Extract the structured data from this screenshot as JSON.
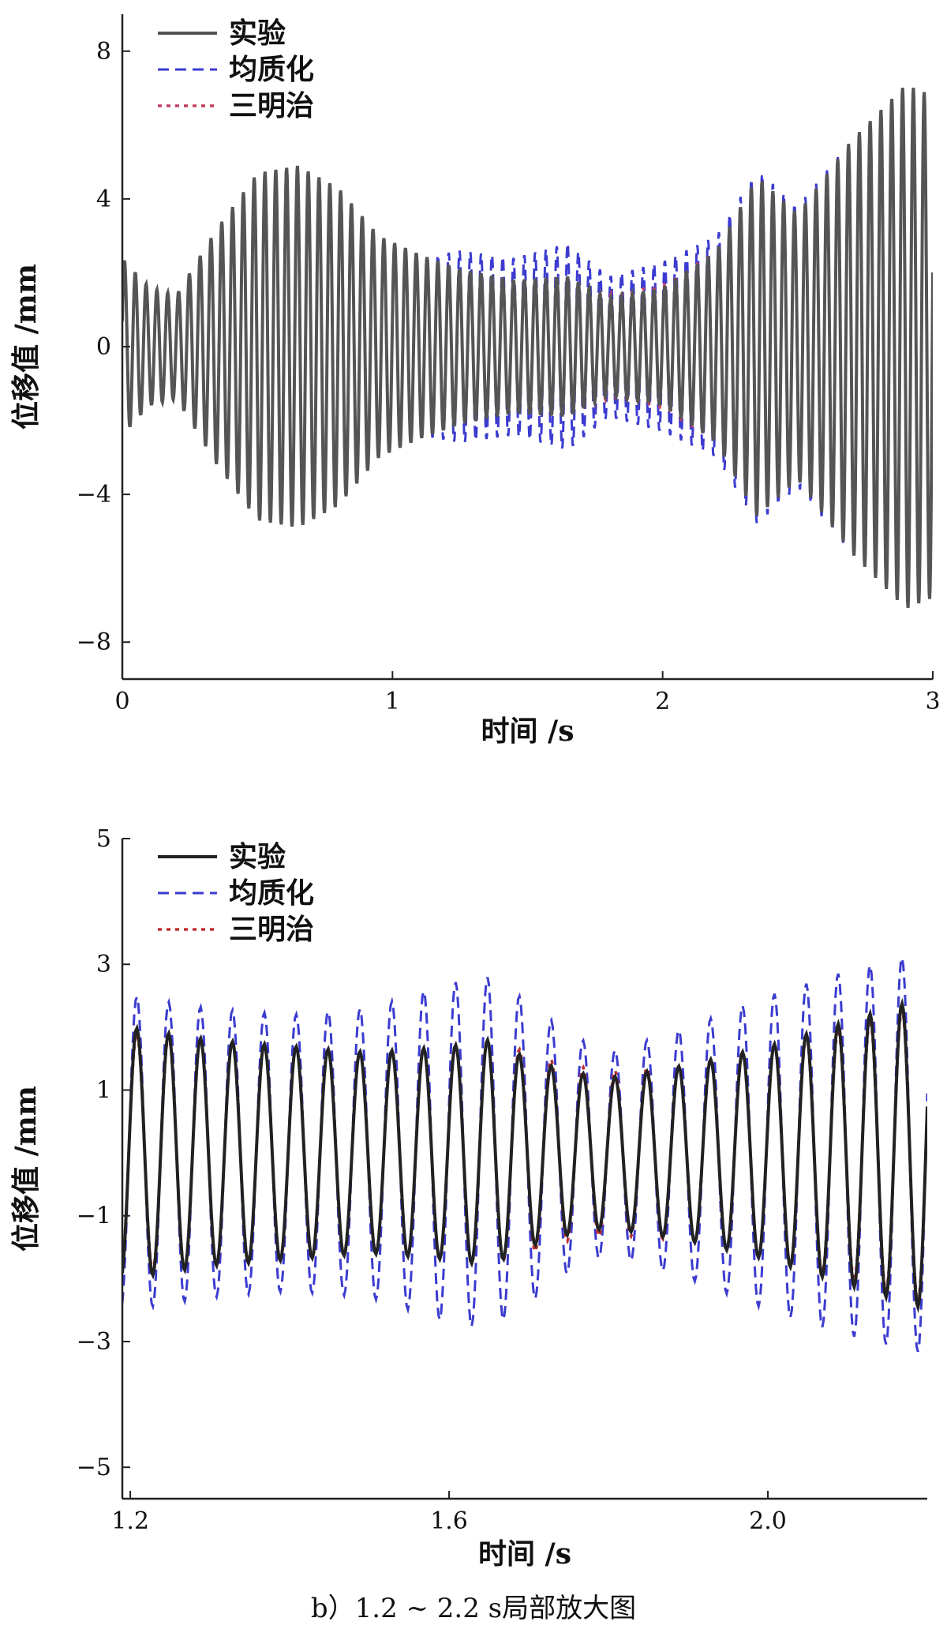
{
  "chart_data": [
    {
      "type": "line",
      "title": "",
      "xlabel": "时间 /s",
      "ylabel": "位移值 /mm",
      "xlim": [
        0,
        3
      ],
      "ylim": [
        -9,
        9
      ],
      "xticks": [
        0,
        1,
        2,
        3
      ],
      "xtick_labels": [
        "0",
        "1",
        "2",
        "3"
      ],
      "yticks": [
        8,
        4,
        0,
        -4,
        -8
      ],
      "ytick_labels": [
        "8",
        "4",
        "0",
        "−4",
        "−8"
      ],
      "grid": false,
      "legend_position": "top-left",
      "oscillation_frequency_hz": 25,
      "series": [
        {
          "name": "实验",
          "style": "solid",
          "color": "#555555",
          "envelope": {
            "t": [
              0,
              0.1,
              0.2,
              0.35,
              0.5,
              0.65,
              0.8,
              0.95,
              1.1,
              1.25,
              1.45,
              1.65,
              1.8,
              2.0,
              2.2,
              2.35,
              2.5,
              2.7,
              2.9,
              3.0
            ],
            "amplitude": [
              2.4,
              1.6,
              1.4,
              3.2,
              4.7,
              4.9,
              4.3,
              3.0,
              2.5,
              2.1,
              1.8,
              1.9,
              1.3,
              1.6,
              2.6,
              4.6,
              3.6,
              5.6,
              7.1,
              6.8
            ]
          }
        },
        {
          "name": "均质化",
          "style": "dashed",
          "color": "#3b3bd0",
          "envelope": {
            "t": [
              0,
              0.1,
              0.2,
              0.35,
              0.5,
              0.65,
              0.8,
              0.95,
              1.1,
              1.25,
              1.45,
              1.65,
              1.8,
              2.0,
              2.2,
              2.35,
              2.5,
              2.7,
              2.9,
              3.0
            ],
            "amplitude": [
              2.3,
              1.6,
              1.4,
              3.2,
              4.7,
              4.9,
              4.3,
              3.0,
              2.4,
              2.6,
              2.4,
              2.8,
              1.9,
              2.3,
              3.0,
              4.8,
              3.8,
              5.6,
              7.0,
              6.8
            ]
          }
        },
        {
          "name": "三明治",
          "style": "dotted",
          "color": "#c04060",
          "envelope": {
            "t": [
              0,
              0.1,
              0.2,
              0.35,
              0.5,
              0.65,
              0.8,
              0.95,
              1.1,
              1.25,
              1.45,
              1.65,
              1.8,
              2.0,
              2.2,
              2.35,
              2.5,
              2.7,
              2.9,
              3.0
            ],
            "amplitude": [
              2.3,
              1.6,
              1.4,
              3.2,
              4.7,
              4.9,
              4.3,
              3.0,
              2.4,
              2.0,
              1.7,
              1.8,
              1.4,
              1.7,
              2.6,
              4.6,
              3.6,
              5.6,
              7.1,
              6.8
            ]
          }
        }
      ]
    },
    {
      "type": "line",
      "title": "b）1.2 ~ 2.2 s局部放大图",
      "xlabel": "时间 /s",
      "ylabel": "位移值 /mm",
      "xlim": [
        1.19,
        2.2
      ],
      "ylim": [
        -5.5,
        5
      ],
      "xticks": [
        1.2,
        1.6,
        2.0
      ],
      "xtick_labels": [
        "1.2",
        "1.6",
        "2.0"
      ],
      "yticks": [
        5,
        3,
        1,
        -1,
        -3,
        -5
      ],
      "ytick_labels": [
        "5",
        "3",
        "1",
        "−1",
        "−3",
        "−5"
      ],
      "grid": false,
      "legend_position": "top-left",
      "oscillation_frequency_hz": 25,
      "series": [
        {
          "name": "实验",
          "style": "solid",
          "color": "#222222",
          "envelope": {
            "t": [
              1.2,
              1.3,
              1.4,
              1.5,
              1.6,
              1.65,
              1.7,
              1.75,
              1.8,
              1.9,
              2.0,
              2.1,
              2.2
            ],
            "amplitude": [
              2.0,
              1.8,
              1.7,
              1.6,
              1.7,
              1.8,
              1.5,
              1.3,
              1.2,
              1.4,
              1.7,
              2.1,
              2.5
            ]
          }
        },
        {
          "name": "均质化",
          "style": "dashed",
          "color": "#3b3bd0",
          "envelope": {
            "t": [
              1.2,
              1.3,
              1.4,
              1.5,
              1.6,
              1.65,
              1.7,
              1.75,
              1.8,
              1.9,
              2.0,
              2.1,
              2.2
            ],
            "amplitude": [
              2.5,
              2.3,
              2.2,
              2.3,
              2.7,
              2.8,
              2.4,
              1.9,
              1.6,
              2.0,
              2.5,
              2.9,
              3.2
            ]
          }
        },
        {
          "name": "三明治",
          "style": "dotted",
          "color": "#c03030",
          "envelope": {
            "t": [
              1.2,
              1.3,
              1.4,
              1.5,
              1.6,
              1.65,
              1.7,
              1.75,
              1.8,
              1.9,
              2.0,
              2.1,
              2.2
            ],
            "amplitude": [
              1.9,
              1.8,
              1.7,
              1.6,
              1.7,
              1.8,
              1.6,
              1.4,
              1.3,
              1.4,
              1.7,
              2.0,
              2.4
            ]
          }
        }
      ]
    }
  ]
}
